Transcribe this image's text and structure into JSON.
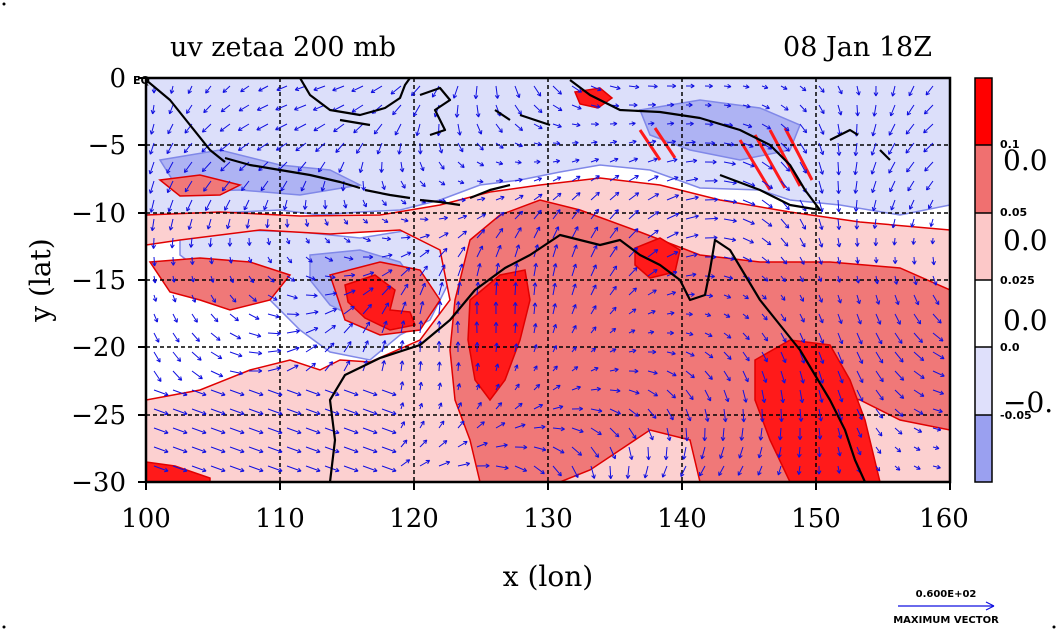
{
  "title": {
    "left": "uv zetaa 200 mb",
    "right": "08 Jan 18Z"
  },
  "axes": {
    "xlabel": "x (lon)",
    "ylabel": "y (lat)",
    "xticks": [
      "100",
      "110",
      "120",
      "130",
      "140",
      "150",
      "160"
    ],
    "yticks": [
      "0",
      "−5",
      "−10",
      "−15",
      "−20",
      "−25",
      "−30"
    ],
    "eq_label": "EQ",
    "lon_range": [
      100,
      160
    ],
    "lat_range": [
      -30,
      0
    ]
  },
  "colorbar": {
    "small_labels": [
      "0.1",
      "0.05",
      "0.025",
      "0.0",
      "-0.05"
    ],
    "big_labels": [
      "0.0",
      "0.0",
      "0.0",
      "−0."
    ],
    "colors": [
      "#ff0000",
      "#f07070",
      "#fcc8c8",
      "#ffffff",
      "#dfe0fb",
      "#9aa0f0"
    ]
  },
  "vector_key": {
    "value": "0.600E+02",
    "label": "MAXIMUM VECTOR"
  },
  "colors": {
    "strong_pos": "#ff1a1a",
    "mid_pos": "#f07878",
    "weak_pos": "#fcd0d0",
    "weak_neg": "#dcdffa",
    "mid_neg": "#aeb3f3",
    "contour_pos": "#e00000",
    "contour_neg": "#8088e8",
    "arrow": "#1010e0",
    "coast": "#000000"
  }
}
